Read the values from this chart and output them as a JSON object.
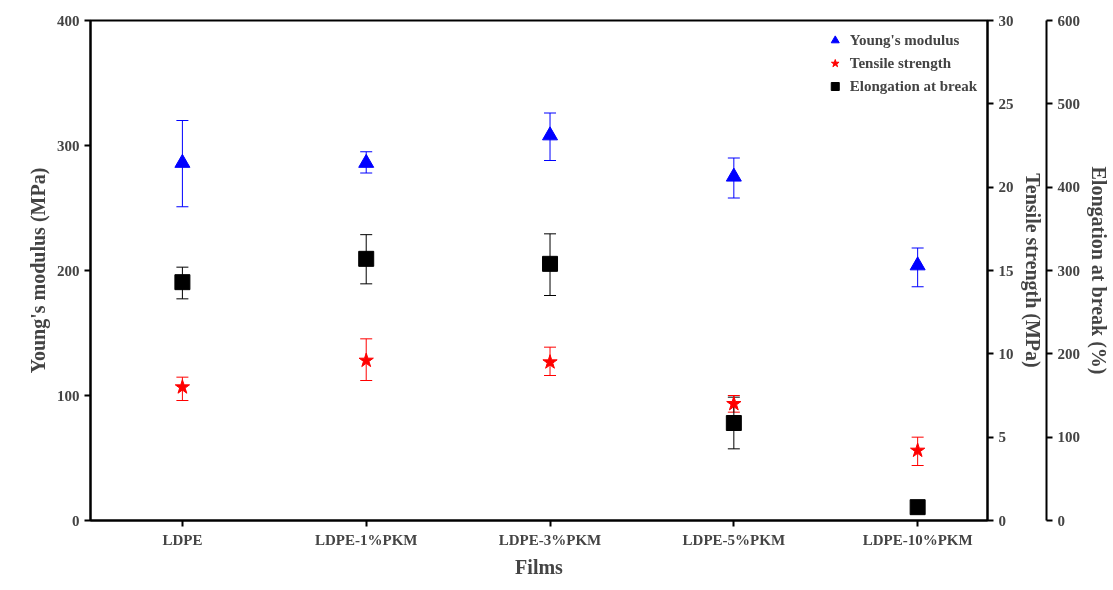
{
  "chart_data": {
    "type": "scatter",
    "xlabel": "Films",
    "ylabel": "Young's modulus (MPa)",
    "y2label": "Tensile strength (MPa)",
    "y3label": "Elongation at break (%)",
    "categories": [
      "LDPE",
      "LDPE-1%PKM",
      "LDPE-3%PKM",
      "LDPE-5%PKM",
      "LDPE-10%PKM"
    ],
    "ylim": [
      0,
      400
    ],
    "yticks": [
      0,
      100,
      200,
      300,
      400
    ],
    "y2lim": [
      0,
      30
    ],
    "y2ticks": [
      0,
      5,
      10,
      15,
      20,
      25,
      30
    ],
    "y3lim": [
      0,
      600
    ],
    "y3ticks": [
      0,
      100,
      200,
      300,
      400,
      500,
      600
    ],
    "grid": false,
    "legend": "top right",
    "series": [
      {
        "name": "Young's modulus",
        "color": "#0000ff",
        "marker": "triangle",
        "values": [
          286,
          286,
          308,
          275,
          204
        ],
        "errors": [
          [
            251,
            320
          ],
          [
            278,
            295
          ],
          [
            288,
            326
          ],
          [
            258,
            290
          ],
          [
            187,
            218
          ]
        ]
      },
      {
        "name": "Tensile strength",
        "color": "#ff0000",
        "marker": "star",
        "axis": "y2",
        "values": [
          8.0,
          9.6,
          9.5,
          7.0,
          4.2
        ],
        "errors": [
          [
            7.2,
            8.6
          ],
          [
            8.4,
            10.9
          ],
          [
            8.7,
            10.4
          ],
          [
            6.5,
            7.5
          ],
          [
            3.3,
            5.0
          ]
        ]
      },
      {
        "name": "Elongation at break",
        "color": "#000000",
        "marker": "square",
        "axis": "y3",
        "values": [
          286,
          314,
          308,
          117,
          16
        ],
        "errors": [
          [
            266,
            304
          ],
          [
            284,
            343
          ],
          [
            270,
            344
          ],
          [
            86,
            148
          ],
          null
        ]
      }
    ]
  }
}
